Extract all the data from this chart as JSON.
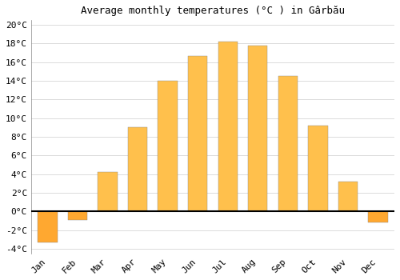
{
  "title": "Average monthly temperatures (°C ) in Gârbău",
  "months": [
    "Jan",
    "Feb",
    "Mar",
    "Apr",
    "May",
    "Jun",
    "Jul",
    "Aug",
    "Sep",
    "Oct",
    "Nov",
    "Dec"
  ],
  "values": [
    -3.3,
    -0.9,
    4.2,
    9.0,
    14.0,
    16.7,
    18.2,
    17.8,
    14.5,
    9.2,
    3.2,
    -1.2
  ],
  "bar_color_pos": "#FFC04C",
  "bar_color_neg": "#FFA830",
  "ylim": [
    -4.5,
    20.5
  ],
  "yticks": [
    -4,
    -2,
    0,
    2,
    4,
    6,
    8,
    10,
    12,
    14,
    16,
    18,
    20
  ],
  "background_color": "#ffffff",
  "grid_color": "#cccccc",
  "title_fontsize": 9,
  "axis_fontsize": 8,
  "zero_line_color": "#000000",
  "bar_width": 0.65
}
